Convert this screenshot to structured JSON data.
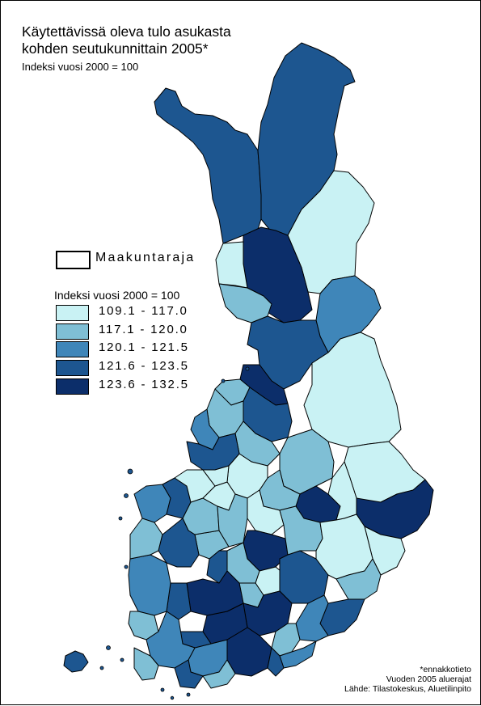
{
  "title_line1": "Käytettävissä oleva tulo asukasta",
  "title_line2": "kohden seutukunnittain 2005*",
  "subtitle": "Indeksi vuosi 2000 = 100",
  "legend": {
    "border_label": "Maakuntaraja",
    "title": "Indeksi vuosi 2000 = 100",
    "classes": [
      {
        "label": "109.1 - 117.0",
        "color": "#c9f2f4"
      },
      {
        "label": "117.1 - 120.0",
        "color": "#7fbfd5"
      },
      {
        "label": "120.1 - 121.5",
        "color": "#3f86b9"
      },
      {
        "label": "121.6 - 123.5",
        "color": "#1d5690"
      },
      {
        "label": "123.6 - 132.5",
        "color": "#0c2e6a"
      }
    ]
  },
  "footnotes": {
    "line1": "*ennakkotieto",
    "line2": "Vuoden 2005 aluerajat",
    "line3": "Lähde: Tilastokeskus, Aluetilinpito"
  }
}
